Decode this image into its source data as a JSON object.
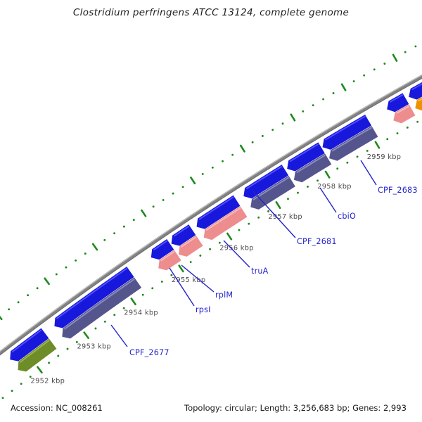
{
  "title": "Clostridium perfringens ATCC 13124, complete genome",
  "footer": {
    "accession": "Accession: NC_008261",
    "summary": "Topology: circular; Length: 3,256,683 bp; Genes: 2,993"
  },
  "colors": {
    "cds_fill": "#1818dd",
    "cds_edge": "#5252ff",
    "backbone": "#828282",
    "backbone_light": "#bdbdbd",
    "backbone_dark": "#6e6e6e",
    "tick_green": "#1d8a1d",
    "label_blue": "#2323cb",
    "ruler_text": "#4b4b4b",
    "category": {
      "slate": {
        "fill": "#55558e",
        "edge": "#8d8dbd"
      },
      "salmon": {
        "fill": "#ee8d8d",
        "edge": "#f6bcbc"
      },
      "olive": {
        "fill": "#6e8c28",
        "edge": "#9fb455"
      },
      "orange": {
        "fill": "#f09200",
        "edge": "#f8bd55"
      }
    }
  },
  "chart_data": {
    "type": "genome-map-arc",
    "organism": "Clostridium perfringens ATCC 13124",
    "accession": "NC_008261",
    "topology": "circular",
    "length_bp": 3256683,
    "gene_count": 2993,
    "ruler": {
      "unit": "kbp",
      "tick_label_suffix": " kbp",
      "labeled_ticks": [
        2952,
        2953,
        2954,
        2955,
        2956,
        2957,
        2958,
        2959
      ],
      "major_interval_kbp": 1,
      "dot_interval_kbp": 0.2,
      "outer_ring_range_kbp": [
        2951.8,
        2960.7
      ],
      "inner_ring_range_kbp": [
        2951.0,
        2960.3
      ]
    },
    "genes": [
      {
        "name": "",
        "start_kbp": 2951.7,
        "end_kbp": 2952.45,
        "strand": "reverse",
        "category": "olive"
      },
      {
        "name": "CPF_2677",
        "start_kbp": 2952.65,
        "end_kbp": 2954.25,
        "strand": "reverse",
        "category": "slate",
        "label_xy": [
          184,
          505
        ],
        "leader": [
          158,
          462,
          181,
          493
        ]
      },
      {
        "name": "rpsI",
        "start_kbp": 2954.68,
        "end_kbp": 2955.08,
        "strand": "reverse",
        "category": "salmon",
        "label_xy": [
          278,
          444
        ],
        "leader": [
          241,
          381,
          276,
          435
        ]
      },
      {
        "name": "rplM",
        "start_kbp": 2955.1,
        "end_kbp": 2955.53,
        "strand": "reverse",
        "category": "salmon",
        "label_xy": [
          306,
          423
        ],
        "leader": [
          258,
          377,
          304,
          415
        ]
      },
      {
        "name": "truA",
        "start_kbp": 2955.62,
        "end_kbp": 2956.44,
        "strand": "reverse",
        "category": "salmon",
        "label_xy": [
          357,
          389
        ],
        "leader": [
          318,
          342,
          355,
          380
        ]
      },
      {
        "name": "CPF_2681",
        "start_kbp": 2956.58,
        "end_kbp": 2957.42,
        "strand": "reverse",
        "category": "slate",
        "label_xy": [
          422,
          347
        ],
        "leader": [
          360,
          272,
          420,
          338
        ]
      },
      {
        "name": "cbiO",
        "start_kbp": 2957.46,
        "end_kbp": 2958.15,
        "strand": "reverse",
        "category": "slate",
        "label_xy": [
          480,
          311
        ],
        "leader": [
          455,
          267,
          478,
          302
        ]
      },
      {
        "name": "CPF_2683",
        "start_kbp": 2958.17,
        "end_kbp": 2959.08,
        "strand": "reverse",
        "category": "slate",
        "label_xy": [
          537,
          274
        ],
        "leader": [
          513,
          228,
          535,
          263
        ]
      },
      {
        "name": "",
        "start_kbp": 2959.45,
        "end_kbp": 2959.82,
        "strand": "reverse",
        "category": "salmon"
      },
      {
        "name": "",
        "start_kbp": 2959.88,
        "end_kbp": 2960.55,
        "strand": "reverse",
        "category": "orange"
      }
    ],
    "layout": {
      "center": [
        3002,
        4429
      ],
      "deg_per_kbp": 0.966,
      "theta_deg_at_2952": -127.04,
      "radius_backbone": 4943,
      "radius_cds_outer": 4936,
      "radius_cds_inner": 4918,
      "radius_cat_outer": 4917.5,
      "radius_cat_inner": 4899.5,
      "radius_outer_ruler": 4985,
      "radius_inner_ruler": 4890,
      "radius_ruler_labels": 4871,
      "arrow_head_kbp": 0.095,
      "backbone_range_kbp": [
        2951.2,
        2960.7
      ]
    }
  }
}
